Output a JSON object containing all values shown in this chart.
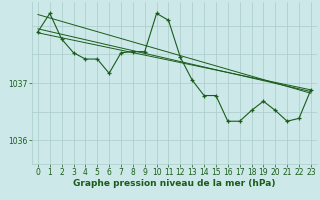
{
  "xlabel": "Graphe pression niveau de la mer (hPa)",
  "bg_color": "#cce8e8",
  "grid_color": "#aacccc",
  "line_color": "#1a5c1a",
  "ylim": [
    1035.58,
    1038.42
  ],
  "yticks": [
    1036,
    1037
  ],
  "xlim": [
    -0.5,
    23.5
  ],
  "xticks": [
    0,
    1,
    2,
    3,
    4,
    5,
    6,
    7,
    8,
    9,
    10,
    11,
    12,
    13,
    14,
    15,
    16,
    17,
    18,
    19,
    20,
    21,
    22,
    23
  ],
  "main_series": [
    1037.9,
    1038.22,
    1037.77,
    1037.53,
    1037.42,
    1037.42,
    1037.17,
    1037.53,
    1037.55,
    1037.55,
    1038.22,
    1038.1,
    1037.45,
    1037.05,
    1036.78,
    1036.78,
    1036.33,
    1036.33,
    1036.52,
    1036.68,
    1036.52,
    1036.33,
    1036.38,
    1036.88
  ],
  "trend_lines": [
    [
      1038.2,
      1036.82
    ],
    [
      1037.95,
      1036.85
    ],
    [
      1037.88,
      1036.88
    ]
  ],
  "xlabel_fontsize": 6.5,
  "tick_fontsize": 5.5
}
